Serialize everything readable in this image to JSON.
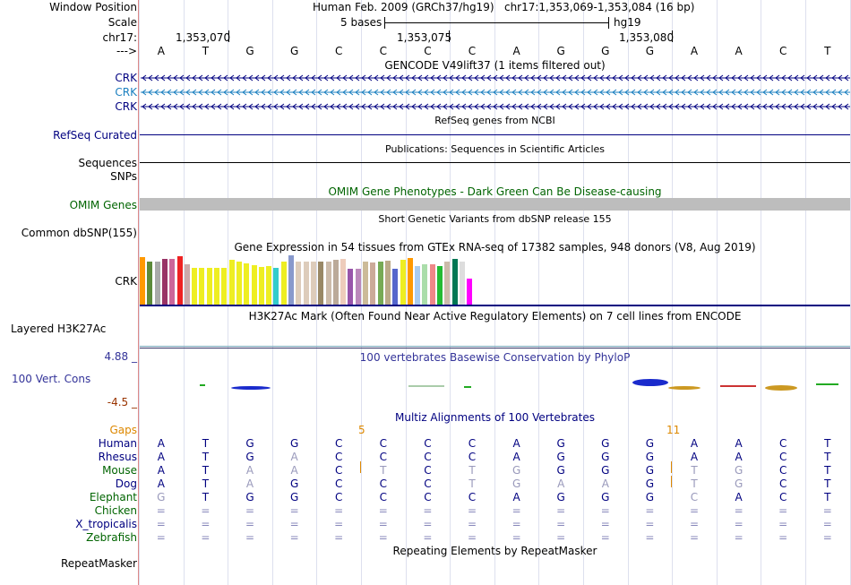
{
  "header": {
    "window_position_label": "Window Position",
    "assembly": "Human Feb. 2009 (GRCh37/hg19)",
    "position": "chr17:1,353,069-1,353,084 (16 bp)",
    "scale_label": "Scale",
    "scale_text": "5 bases",
    "scale_assembly": "hg19",
    "chrom_label": "chr17:",
    "ticks": [
      "1,353,070",
      "1,353,075",
      "1,353,080"
    ],
    "strand_label": "--->",
    "sequence": [
      "A",
      "T",
      "G",
      "G",
      "C",
      "C",
      "C",
      "C",
      "A",
      "G",
      "G",
      "G",
      "A",
      "A",
      "C",
      "T"
    ]
  },
  "tracks": {
    "gencode": {
      "title": "GENCODE V49lift37 (1 items filtered out)",
      "rows": [
        {
          "label": "CRK",
          "color": "#000080"
        },
        {
          "label": "CRK",
          "color": "#1a7fbf"
        },
        {
          "label": "CRK",
          "color": "#000080"
        }
      ]
    },
    "refseq": {
      "title": "RefSeq genes from NCBI",
      "label": "RefSeq Curated"
    },
    "publications": {
      "title": "Publications: Sequences in Scientific Articles",
      "label1": "Sequences",
      "label2": "SNPs"
    },
    "omim": {
      "title": "OMIM Gene Phenotypes - Dark Green Can Be Disease-causing",
      "label": "OMIM Genes"
    },
    "dbsnp": {
      "title": "Short Genetic Variants from dbSNP release 155",
      "label": "Common dbSNP(155)"
    },
    "gtex": {
      "title": "Gene Expression in 54 tissues from GTEx RNA-seq of 17382 samples, 948 donors (V8, Aug 2019)",
      "label": "CRK"
    },
    "h3k27ac": {
      "title": "H3K27Ac Mark (Often Found Near Active Regulatory Elements) on 7 cell lines from ENCODE",
      "label": "Layered H3K27Ac"
    },
    "phylop": {
      "title": "100 vertebrates Basewise Conservation by PhyloP",
      "label": "100 Vert. Cons",
      "max": "4.88 _",
      "min": "-4.5 _"
    },
    "multiz": {
      "title": "Multiz Alignments of 100 Vertebrates",
      "gaps_label": "Gaps",
      "gap_counts": [
        "5",
        "11"
      ],
      "species": [
        {
          "name": "Human",
          "bases": [
            "A",
            "T",
            "G",
            "G",
            "C",
            "C",
            "C",
            "C",
            "A",
            "G",
            "G",
            "G",
            "A",
            "A",
            "C",
            "T"
          ]
        },
        {
          "name": "Rhesus",
          "bases": [
            "A",
            "T",
            "G",
            "A",
            "C",
            "C",
            "C",
            "C",
            "A",
            "G",
            "G",
            "G",
            "A",
            "A",
            "C",
            "T"
          ]
        },
        {
          "name": "Mouse",
          "bases": [
            "A",
            "T",
            "A",
            "A",
            "C",
            "T",
            "C",
            "T",
            "G",
            "G",
            "G",
            "G",
            "T",
            "G",
            "C",
            "T"
          ]
        },
        {
          "name": "Dog",
          "bases": [
            "A",
            "T",
            "A",
            "G",
            "C",
            "C",
            "C",
            "T",
            "G",
            "A",
            "A",
            "G",
            "T",
            "G",
            "C",
            "T"
          ]
        },
        {
          "name": "Elephant",
          "bases": [
            "G",
            "T",
            "G",
            "G",
            "C",
            "C",
            "C",
            "C",
            "A",
            "G",
            "G",
            "G",
            "C",
            "A",
            "C",
            "T"
          ]
        },
        {
          "name": "Chicken",
          "bases": [
            "=",
            "=",
            "=",
            "=",
            "=",
            "=",
            "=",
            "=",
            "=",
            "=",
            "=",
            "=",
            "=",
            "=",
            "=",
            "="
          ]
        },
        {
          "name": "X_tropicalis",
          "bases": [
            "=",
            "=",
            "=",
            "=",
            "=",
            "=",
            "=",
            "=",
            "=",
            "=",
            "=",
            "=",
            "=",
            "=",
            "=",
            "="
          ]
        },
        {
          "name": "Zebrafish",
          "bases": [
            "=",
            "=",
            "=",
            "=",
            "=",
            "=",
            "=",
            "=",
            "=",
            "=",
            "=",
            "=",
            "=",
            "=",
            "=",
            "="
          ]
        }
      ]
    },
    "repeatmasker": {
      "title": "Repeating Elements by RepeatMasker",
      "label": "RepeatMasker"
    }
  },
  "gtex_colors": [
    "#ff9900",
    "#5c8a3a",
    "#aaaaaa",
    "#993366",
    "#cc6699",
    "#ee2222",
    "#ccaaaa",
    "#eeee22",
    "#eeee22",
    "#eeee22",
    "#eeee22",
    "#eeee22",
    "#eeee22",
    "#eeee22",
    "#eeee22",
    "#eeee22",
    "#eeee22",
    "#eeee22",
    "#33cccc",
    "#eeee22",
    "#8899cc",
    "#ddccbb",
    "#ddccbb",
    "#ddccbb",
    "#998866",
    "#ccbbaa",
    "#bbaa99",
    "#eeccbb",
    "#9955aa",
    "#bb88bb",
    "#ccbb99",
    "#ccaa99",
    "#77aa55",
    "#bbaa88",
    "#5566cc",
    "#eeee22",
    "#ff9900",
    "#aaccee",
    "#aaddaa",
    "#ee8888",
    "#22bb33",
    "#ccbbaa",
    "#007755",
    "#dddddd",
    "#ff00ff"
  ]
}
